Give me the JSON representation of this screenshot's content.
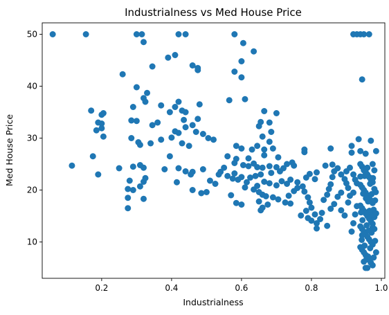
{
  "chart_data": {
    "type": "scatter",
    "title": "Industrialness vs Med House Price",
    "xlabel": "Industrialness",
    "ylabel": "Med House Price",
    "xlim": [
      0.03,
      1.01
    ],
    "ylim": [
      3.0,
      52.2
    ],
    "xticks": [
      0.2,
      0.4,
      0.6,
      0.8,
      1.0
    ],
    "xtick_labels": [
      "0.2",
      "0.4",
      "0.6",
      "0.8",
      "1.0"
    ],
    "yticks": [
      10,
      20,
      30,
      40,
      50
    ],
    "ytick_labels": [
      "10",
      "20",
      "30",
      "40",
      "50"
    ],
    "grid": false,
    "legend": false,
    "marker_color": "#1f77b4",
    "series": [
      {
        "points": [
          [
            0.06,
            50
          ],
          [
            0.155,
            50
          ],
          [
            0.3,
            50
          ],
          [
            0.315,
            50
          ],
          [
            0.42,
            50
          ],
          [
            0.44,
            50
          ],
          [
            0.58,
            50
          ],
          [
            0.92,
            50
          ],
          [
            0.93,
            50
          ],
          [
            0.94,
            50
          ],
          [
            0.95,
            50
          ],
          [
            0.965,
            50
          ],
          [
            0.32,
            48.5
          ],
          [
            0.605,
            48.3
          ],
          [
            0.41,
            46.0
          ],
          [
            0.39,
            45.5
          ],
          [
            0.635,
            46.7
          ],
          [
            0.6,
            44.8
          ],
          [
            0.46,
            44.0
          ],
          [
            0.475,
            43.5
          ],
          [
            0.475,
            43.1
          ],
          [
            0.58,
            42.8
          ],
          [
            0.6,
            41.7
          ],
          [
            0.345,
            43.8
          ],
          [
            0.26,
            42.3
          ],
          [
            0.945,
            41.3
          ],
          [
            0.3,
            39.8
          ],
          [
            0.33,
            38.7
          ],
          [
            0.32,
            37.7
          ],
          [
            0.325,
            37.0
          ],
          [
            0.42,
            37.0
          ],
          [
            0.565,
            37.3
          ],
          [
            0.61,
            37.5
          ],
          [
            0.41,
            36.0
          ],
          [
            0.43,
            35.3
          ],
          [
            0.44,
            35.0
          ],
          [
            0.48,
            36.5
          ],
          [
            0.29,
            36.0
          ],
          [
            0.37,
            36.3
          ],
          [
            0.17,
            35.3
          ],
          [
            0.205,
            34.8
          ],
          [
            0.2,
            34.5
          ],
          [
            0.395,
            35.0
          ],
          [
            0.665,
            35.2
          ],
          [
            0.7,
            34.8
          ],
          [
            0.36,
            33.0
          ],
          [
            0.345,
            32.5
          ],
          [
            0.285,
            33.4
          ],
          [
            0.3,
            33.3
          ],
          [
            0.435,
            33.5
          ],
          [
            0.475,
            33.7
          ],
          [
            0.655,
            33.1
          ],
          [
            0.65,
            32.3
          ],
          [
            0.68,
            33.0
          ],
          [
            0.19,
            33.0
          ],
          [
            0.2,
            32.8
          ],
          [
            0.2,
            31.9
          ],
          [
            0.185,
            31.5
          ],
          [
            0.42,
            31.0
          ],
          [
            0.41,
            31.3
          ],
          [
            0.44,
            32.1
          ],
          [
            0.46,
            32.5
          ],
          [
            0.47,
            31.2
          ],
          [
            0.49,
            30.8
          ],
          [
            0.505,
            30.0
          ],
          [
            0.52,
            29.7
          ],
          [
            0.4,
            30.1
          ],
          [
            0.37,
            29.7
          ],
          [
            0.34,
            29.0
          ],
          [
            0.305,
            29.2
          ],
          [
            0.31,
            28.7
          ],
          [
            0.285,
            30.0
          ],
          [
            0.43,
            29.0
          ],
          [
            0.45,
            28.5
          ],
          [
            0.205,
            30.3
          ],
          [
            0.585,
            28.5
          ],
          [
            0.6,
            28.0
          ],
          [
            0.63,
            27.8
          ],
          [
            0.66,
            30.3
          ],
          [
            0.68,
            29.3
          ],
          [
            0.685,
            31.2
          ],
          [
            0.665,
            27.8
          ],
          [
            0.69,
            28.0
          ],
          [
            0.645,
            28.5
          ],
          [
            0.78,
            27.3
          ],
          [
            0.78,
            27.8
          ],
          [
            0.855,
            28.0
          ],
          [
            0.915,
            28.5
          ],
          [
            0.915,
            27.2
          ],
          [
            0.935,
            29.8
          ],
          [
            0.94,
            27.5
          ],
          [
            0.955,
            27.0
          ],
          [
            0.985,
            27.5
          ],
          [
            0.97,
            29.5
          ],
          [
            0.395,
            26.5
          ],
          [
            0.175,
            26.5
          ],
          [
            0.665,
            26.7
          ],
          [
            0.705,
            26.3
          ],
          [
            0.62,
            26.1
          ],
          [
            0.585,
            26.0
          ],
          [
            0.56,
            26.5
          ],
          [
            0.635,
            25.1
          ],
          [
            0.645,
            24.4
          ],
          [
            0.55,
            24.3
          ],
          [
            0.54,
            23.5
          ],
          [
            0.605,
            24.8
          ],
          [
            0.62,
            24.6
          ],
          [
            0.58,
            25.2
          ],
          [
            0.31,
            24.8
          ],
          [
            0.32,
            24.3
          ],
          [
            0.115,
            24.7
          ],
          [
            0.29,
            24.5
          ],
          [
            0.25,
            24.2
          ],
          [
            0.49,
            24.0
          ],
          [
            0.46,
            23.5
          ],
          [
            0.455,
            23.0
          ],
          [
            0.44,
            23.6
          ],
          [
            0.42,
            24.2
          ],
          [
            0.38,
            24.0
          ],
          [
            0.73,
            25.0
          ],
          [
            0.745,
            25.3
          ],
          [
            0.75,
            24.7
          ],
          [
            0.7,
            24.4
          ],
          [
            0.68,
            24.6
          ],
          [
            0.66,
            24.3
          ],
          [
            0.72,
            24.2
          ],
          [
            0.71,
            23.6
          ],
          [
            0.685,
            23.3
          ],
          [
            0.655,
            23.0
          ],
          [
            0.64,
            22.7
          ],
          [
            0.6,
            22.5
          ],
          [
            0.58,
            23.2
          ],
          [
            0.575,
            22.2
          ],
          [
            0.535,
            23.0
          ],
          [
            0.56,
            22.7
          ],
          [
            0.59,
            22.0
          ],
          [
            0.615,
            21.5
          ],
          [
            0.625,
            22.4
          ],
          [
            0.665,
            21.6
          ],
          [
            0.68,
            21.3
          ],
          [
            0.7,
            20.9
          ],
          [
            0.715,
            21.7
          ],
          [
            0.74,
            22.0
          ],
          [
            0.73,
            21.2
          ],
          [
            0.76,
            21.5
          ],
          [
            0.785,
            22.4
          ],
          [
            0.795,
            23.1
          ],
          [
            0.815,
            23.4
          ],
          [
            0.81,
            22.1
          ],
          [
            0.325,
            22.3
          ],
          [
            0.32,
            21.6
          ],
          [
            0.415,
            21.5
          ],
          [
            0.19,
            23.0
          ],
          [
            0.28,
            21.8
          ],
          [
            0.275,
            20.2
          ],
          [
            0.29,
            20.0
          ],
          [
            0.31,
            20.7
          ],
          [
            0.275,
            18.5
          ],
          [
            0.275,
            16.5
          ],
          [
            0.32,
            18.3
          ],
          [
            0.46,
            20.0
          ],
          [
            0.485,
            19.4
          ],
          [
            0.5,
            19.6
          ],
          [
            0.51,
            21.8
          ],
          [
            0.525,
            21.2
          ],
          [
            0.57,
            19.0
          ],
          [
            0.585,
            17.5
          ],
          [
            0.6,
            17.2
          ],
          [
            0.61,
            20.5
          ],
          [
            0.635,
            20.1
          ],
          [
            0.645,
            20.8
          ],
          [
            0.65,
            19.6
          ],
          [
            0.66,
            19.1
          ],
          [
            0.67,
            18.8
          ],
          [
            0.675,
            17.2
          ],
          [
            0.65,
            17.8
          ],
          [
            0.66,
            16.6
          ],
          [
            0.655,
            16.1
          ],
          [
            0.69,
            18.6
          ],
          [
            0.705,
            18.2
          ],
          [
            0.725,
            17.6
          ],
          [
            0.735,
            18.9
          ],
          [
            0.74,
            17.4
          ],
          [
            0.75,
            19.8
          ],
          [
            0.76,
            20.4
          ],
          [
            0.775,
            20.7
          ],
          [
            0.78,
            19.7
          ],
          [
            0.79,
            18.6
          ],
          [
            0.795,
            17.6
          ],
          [
            0.8,
            16.6
          ],
          [
            0.785,
            16.0
          ],
          [
            0.81,
            15.3
          ],
          [
            0.77,
            15.1
          ],
          [
            0.79,
            14.6
          ],
          [
            0.8,
            14.1
          ],
          [
            0.815,
            13.6
          ],
          [
            0.825,
            14.4
          ],
          [
            0.83,
            15.6
          ],
          [
            0.815,
            12.6
          ],
          [
            0.845,
            13.1
          ],
          [
            0.835,
            18.1
          ],
          [
            0.845,
            19.1
          ],
          [
            0.85,
            20.2
          ],
          [
            0.855,
            21.1
          ],
          [
            0.86,
            22.5
          ],
          [
            0.865,
            23.6
          ],
          [
            0.875,
            24.2
          ],
          [
            0.885,
            23.0
          ],
          [
            0.895,
            22.1
          ],
          [
            0.9,
            21.3
          ],
          [
            0.905,
            20.4
          ],
          [
            0.885,
            19.5
          ],
          [
            0.875,
            18.7
          ],
          [
            0.865,
            17.3
          ],
          [
            0.855,
            16.4
          ],
          [
            0.885,
            16.1
          ],
          [
            0.895,
            15.1
          ],
          [
            0.9,
            23.6
          ],
          [
            0.91,
            24.3
          ],
          [
            0.92,
            23.0
          ],
          [
            0.925,
            22.0
          ],
          [
            0.93,
            21.3
          ],
          [
            0.92,
            19.5
          ],
          [
            0.91,
            18.9
          ],
          [
            0.905,
            17.6
          ],
          [
            0.915,
            12.0
          ],
          [
            0.92,
            13.6
          ],
          [
            0.925,
            15.3
          ],
          [
            0.93,
            16.9
          ],
          [
            0.84,
            24.7
          ],
          [
            0.86,
            24.9
          ],
          [
            0.94,
            25.0
          ],
          [
            0.945,
            24.5
          ],
          [
            0.95,
            24.0
          ],
          [
            0.955,
            23.5
          ],
          [
            0.96,
            23.0
          ],
          [
            0.965,
            22.5
          ],
          [
            0.97,
            22.0
          ],
          [
            0.975,
            21.5
          ],
          [
            0.94,
            21.0
          ],
          [
            0.945,
            20.5
          ],
          [
            0.95,
            20.0
          ],
          [
            0.955,
            19.5
          ],
          [
            0.96,
            19.0
          ],
          [
            0.965,
            18.5
          ],
          [
            0.97,
            18.0
          ],
          [
            0.975,
            17.5
          ],
          [
            0.94,
            17.0
          ],
          [
            0.945,
            16.5
          ],
          [
            0.95,
            16.0
          ],
          [
            0.955,
            15.5
          ],
          [
            0.96,
            15.0
          ],
          [
            0.965,
            14.5
          ],
          [
            0.97,
            14.0
          ],
          [
            0.975,
            13.5
          ],
          [
            0.94,
            13.0
          ],
          [
            0.945,
            12.5
          ],
          [
            0.95,
            12.0
          ],
          [
            0.955,
            11.5
          ],
          [
            0.96,
            11.0
          ],
          [
            0.965,
            10.5
          ],
          [
            0.97,
            10.0
          ],
          [
            0.975,
            9.5
          ],
          [
            0.94,
            9.0
          ],
          [
            0.945,
            8.5
          ],
          [
            0.95,
            8.0
          ],
          [
            0.955,
            7.5
          ],
          [
            0.96,
            7.0
          ],
          [
            0.965,
            6.5
          ],
          [
            0.97,
            6.0
          ],
          [
            0.975,
            5.5
          ],
          [
            0.955,
            5.0
          ],
          [
            0.96,
            5.0
          ],
          [
            0.95,
            6.2
          ],
          [
            0.962,
            7.2
          ],
          [
            0.978,
            7.0
          ],
          [
            0.985,
            8.0
          ],
          [
            0.982,
            10.2
          ],
          [
            0.98,
            12.5
          ],
          [
            0.98,
            14.8
          ],
          [
            0.978,
            16.2
          ],
          [
            0.982,
            18.0
          ],
          [
            0.98,
            20.2
          ],
          [
            0.976,
            22.3
          ],
          [
            0.98,
            23.8
          ],
          [
            0.975,
            25.0
          ],
          [
            0.96,
            24.3
          ],
          [
            0.952,
            22.7
          ],
          [
            0.948,
            19.3
          ],
          [
            0.942,
            15.7
          ],
          [
            0.945,
            11.3
          ],
          [
            0.952,
            9.3
          ],
          [
            0.958,
            13.2
          ],
          [
            0.962,
            17.8
          ],
          [
            0.968,
            21.2
          ],
          [
            0.972,
            19.2
          ],
          [
            0.974,
            15.2
          ],
          [
            0.972,
            11.8
          ],
          [
            0.968,
            8.8
          ],
          [
            0.958,
            6.8
          ],
          [
            0.944,
            10.4
          ],
          [
            0.946,
            14.2
          ],
          [
            0.956,
            18.4
          ],
          [
            0.964,
            12.2
          ],
          [
            0.966,
            16.0
          ],
          [
            0.975,
            12.8
          ],
          [
            0.985,
            15.5
          ],
          [
            0.984,
            19.6
          ],
          [
            0.94,
            22.6
          ],
          [
            0.95,
            23.8
          ]
        ]
      }
    ]
  }
}
